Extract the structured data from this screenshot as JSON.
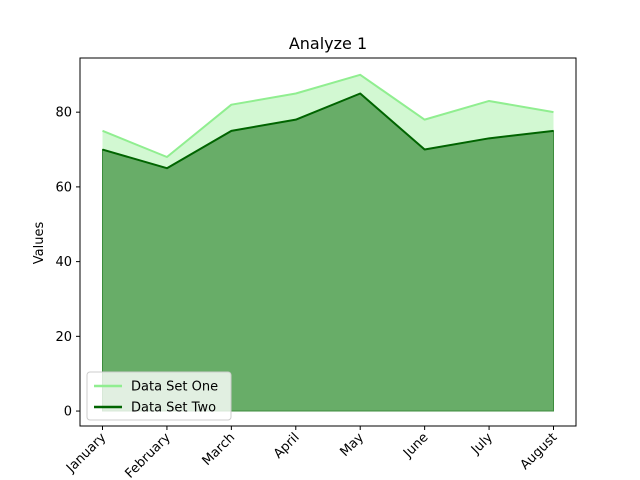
{
  "chart_data": {
    "type": "area",
    "title": "Analyze 1",
    "xlabel": "",
    "ylabel": "Values",
    "categories": [
      "January",
      "February",
      "March",
      "April",
      "May",
      "June",
      "July",
      "August"
    ],
    "series": [
      {
        "name": "Data Set One",
        "values": [
          75,
          68,
          82,
          85,
          90,
          78,
          83,
          80
        ],
        "line_color": "#90ee90",
        "fill_color": "#d2f8d2"
      },
      {
        "name": "Data Set Two",
        "values": [
          70,
          65,
          75,
          78,
          85,
          70,
          73,
          75
        ],
        "line_color": "#006400",
        "fill_color": "#68ad68"
      }
    ],
    "ylim": [
      -4,
      94.5
    ],
    "yticks": [
      0,
      20,
      40,
      60,
      80
    ],
    "grid": false,
    "legend_position": "lower-left"
  }
}
